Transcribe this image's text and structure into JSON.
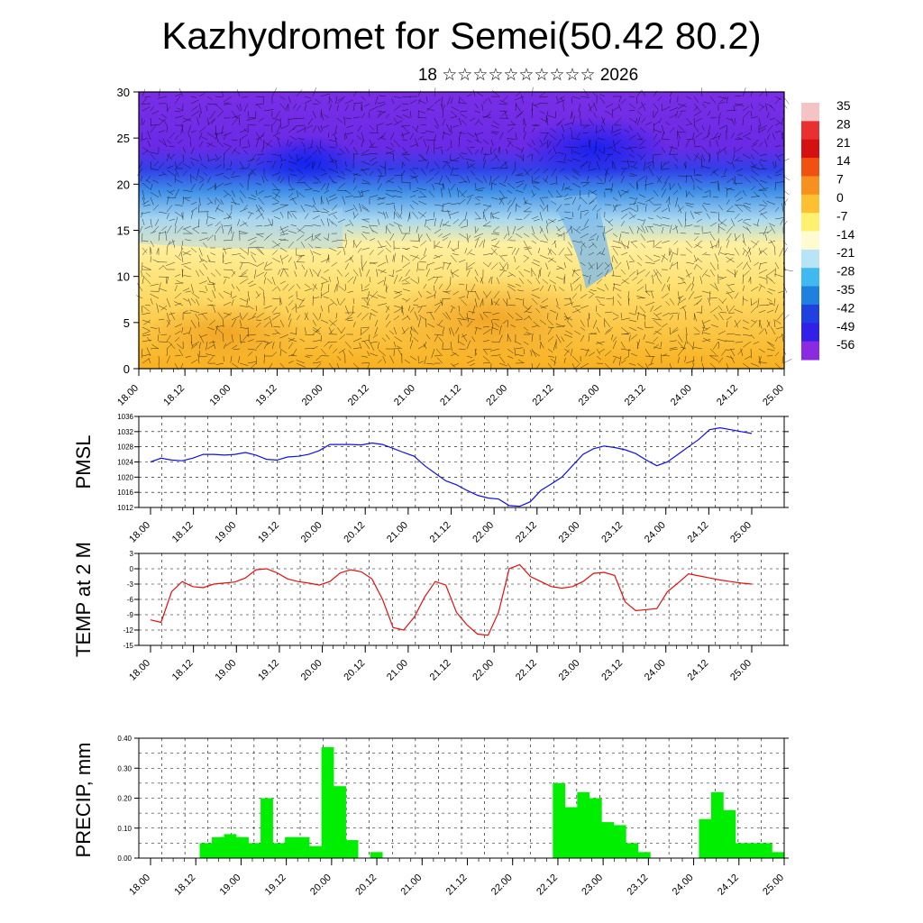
{
  "title": "Kazhydromet for Semei(50.42 80.2)",
  "subtitle": "18 ☆☆☆☆☆☆☆☆☆☆ 2026",
  "colors": {
    "pmsl_line": "#1010e0",
    "temp_line": "#e01010",
    "precip_bar": "#00ee00"
  },
  "time_ticks": [
    "18.00",
    "18.12",
    "19.00",
    "19.12",
    "20.00",
    "20.12",
    "21.00",
    "21.12",
    "22.00",
    "22.12",
    "23.00",
    "23.12",
    "24.00",
    "24.12",
    "25.00"
  ],
  "chart_data": [
    {
      "type": "heatmap",
      "name": "upper-air-section",
      "ylim": [
        0,
        30
      ],
      "yticks": [
        0,
        5,
        10,
        15,
        20,
        25,
        30
      ],
      "colorbar_labels": [
        "35",
        "28",
        "21",
        "14",
        "7",
        "0",
        "-7",
        "-14",
        "-21",
        "-28",
        "-35",
        "-42",
        "-49",
        "-56"
      ],
      "colorbar_stops": [
        "#f4c4c4",
        "#e83030",
        "#d41010",
        "#f05010",
        "#f89020",
        "#fcc030",
        "#fff070",
        "#fffbd0",
        "#b8e4f8",
        "#40b8f0",
        "#2080e0",
        "#2040e0",
        "#3020e8",
        "#8a2be2"
      ]
    },
    {
      "type": "line",
      "ylabel": "PMSL",
      "ylim": [
        1012,
        1036
      ],
      "yticks": [
        1012,
        1016,
        1020,
        1024,
        1028,
        1032,
        1036
      ],
      "values": [
        1024,
        1025,
        1024.5,
        1024.3,
        1025,
        1026,
        1026,
        1025.8,
        1026,
        1026.5,
        1025.8,
        1024.7,
        1024.5,
        1025.3,
        1025.5,
        1026,
        1027,
        1028.6,
        1028.6,
        1028.6,
        1028.5,
        1029,
        1028.6,
        1027.6,
        1026.5,
        1025.5,
        1023,
        1021,
        1019,
        1018,
        1016.5,
        1015.2,
        1014.5,
        1014.2,
        1012.5,
        1012.3,
        1013.5,
        1016.5,
        1018.2,
        1020,
        1023,
        1026,
        1027.5,
        1028.2,
        1027.8,
        1027.2,
        1026.2,
        1024.5,
        1023,
        1024,
        1026,
        1028,
        1030,
        1032.5,
        1033,
        1032.5,
        1032,
        1031.5
      ]
    },
    {
      "type": "line",
      "ylabel": "TEMP at 2 M",
      "ylim": [
        -15,
        3
      ],
      "yticks": [
        -15,
        -12,
        -9,
        -6,
        -3,
        0,
        3
      ],
      "values": [
        -10,
        -10.5,
        -4.5,
        -2.5,
        -3.5,
        -3.7,
        -3,
        -2.8,
        -2.6,
        -1.8,
        -0.2,
        0,
        -0.8,
        -2,
        -2.5,
        -2.8,
        -3.2,
        -2.5,
        -0.8,
        -0.2,
        -0.6,
        -2,
        -6,
        -11.5,
        -12,
        -9.5,
        -5.5,
        -2.5,
        -3.2,
        -8.5,
        -11,
        -12.8,
        -13,
        -8.5,
        0,
        0.8,
        -1.5,
        -2.5,
        -3.5,
        -3.8,
        -3.5,
        -2.5,
        -0.9,
        -0.7,
        -1.3,
        -6.5,
        -8.2,
        -8,
        -7.8,
        -4.5,
        -2.8,
        -1,
        -1.4,
        -1.8,
        -2.2,
        -2.5,
        -2.8,
        -3
      ]
    },
    {
      "type": "bar",
      "ylabel": "PRECIP, mm",
      "ylim": [
        0,
        0.4
      ],
      "yticks": [
        "0.00",
        "0.10",
        "0.20",
        "0.30",
        "0.40"
      ],
      "values": [
        0,
        0,
        0,
        0,
        0,
        0.05,
        0.07,
        0.08,
        0.07,
        0.05,
        0.2,
        0.05,
        0.07,
        0.07,
        0.04,
        0.37,
        0.24,
        0.06,
        0,
        0.02,
        0,
        0,
        0,
        0,
        0,
        0,
        0,
        0,
        0,
        0,
        0,
        0,
        0,
        0,
        0.25,
        0.17,
        0.22,
        0.2,
        0.12,
        0.11,
        0.05,
        0.02,
        0,
        0,
        0,
        0,
        0.13,
        0.22,
        0.16,
        0.05,
        0.05,
        0.05,
        0.02
      ]
    }
  ]
}
